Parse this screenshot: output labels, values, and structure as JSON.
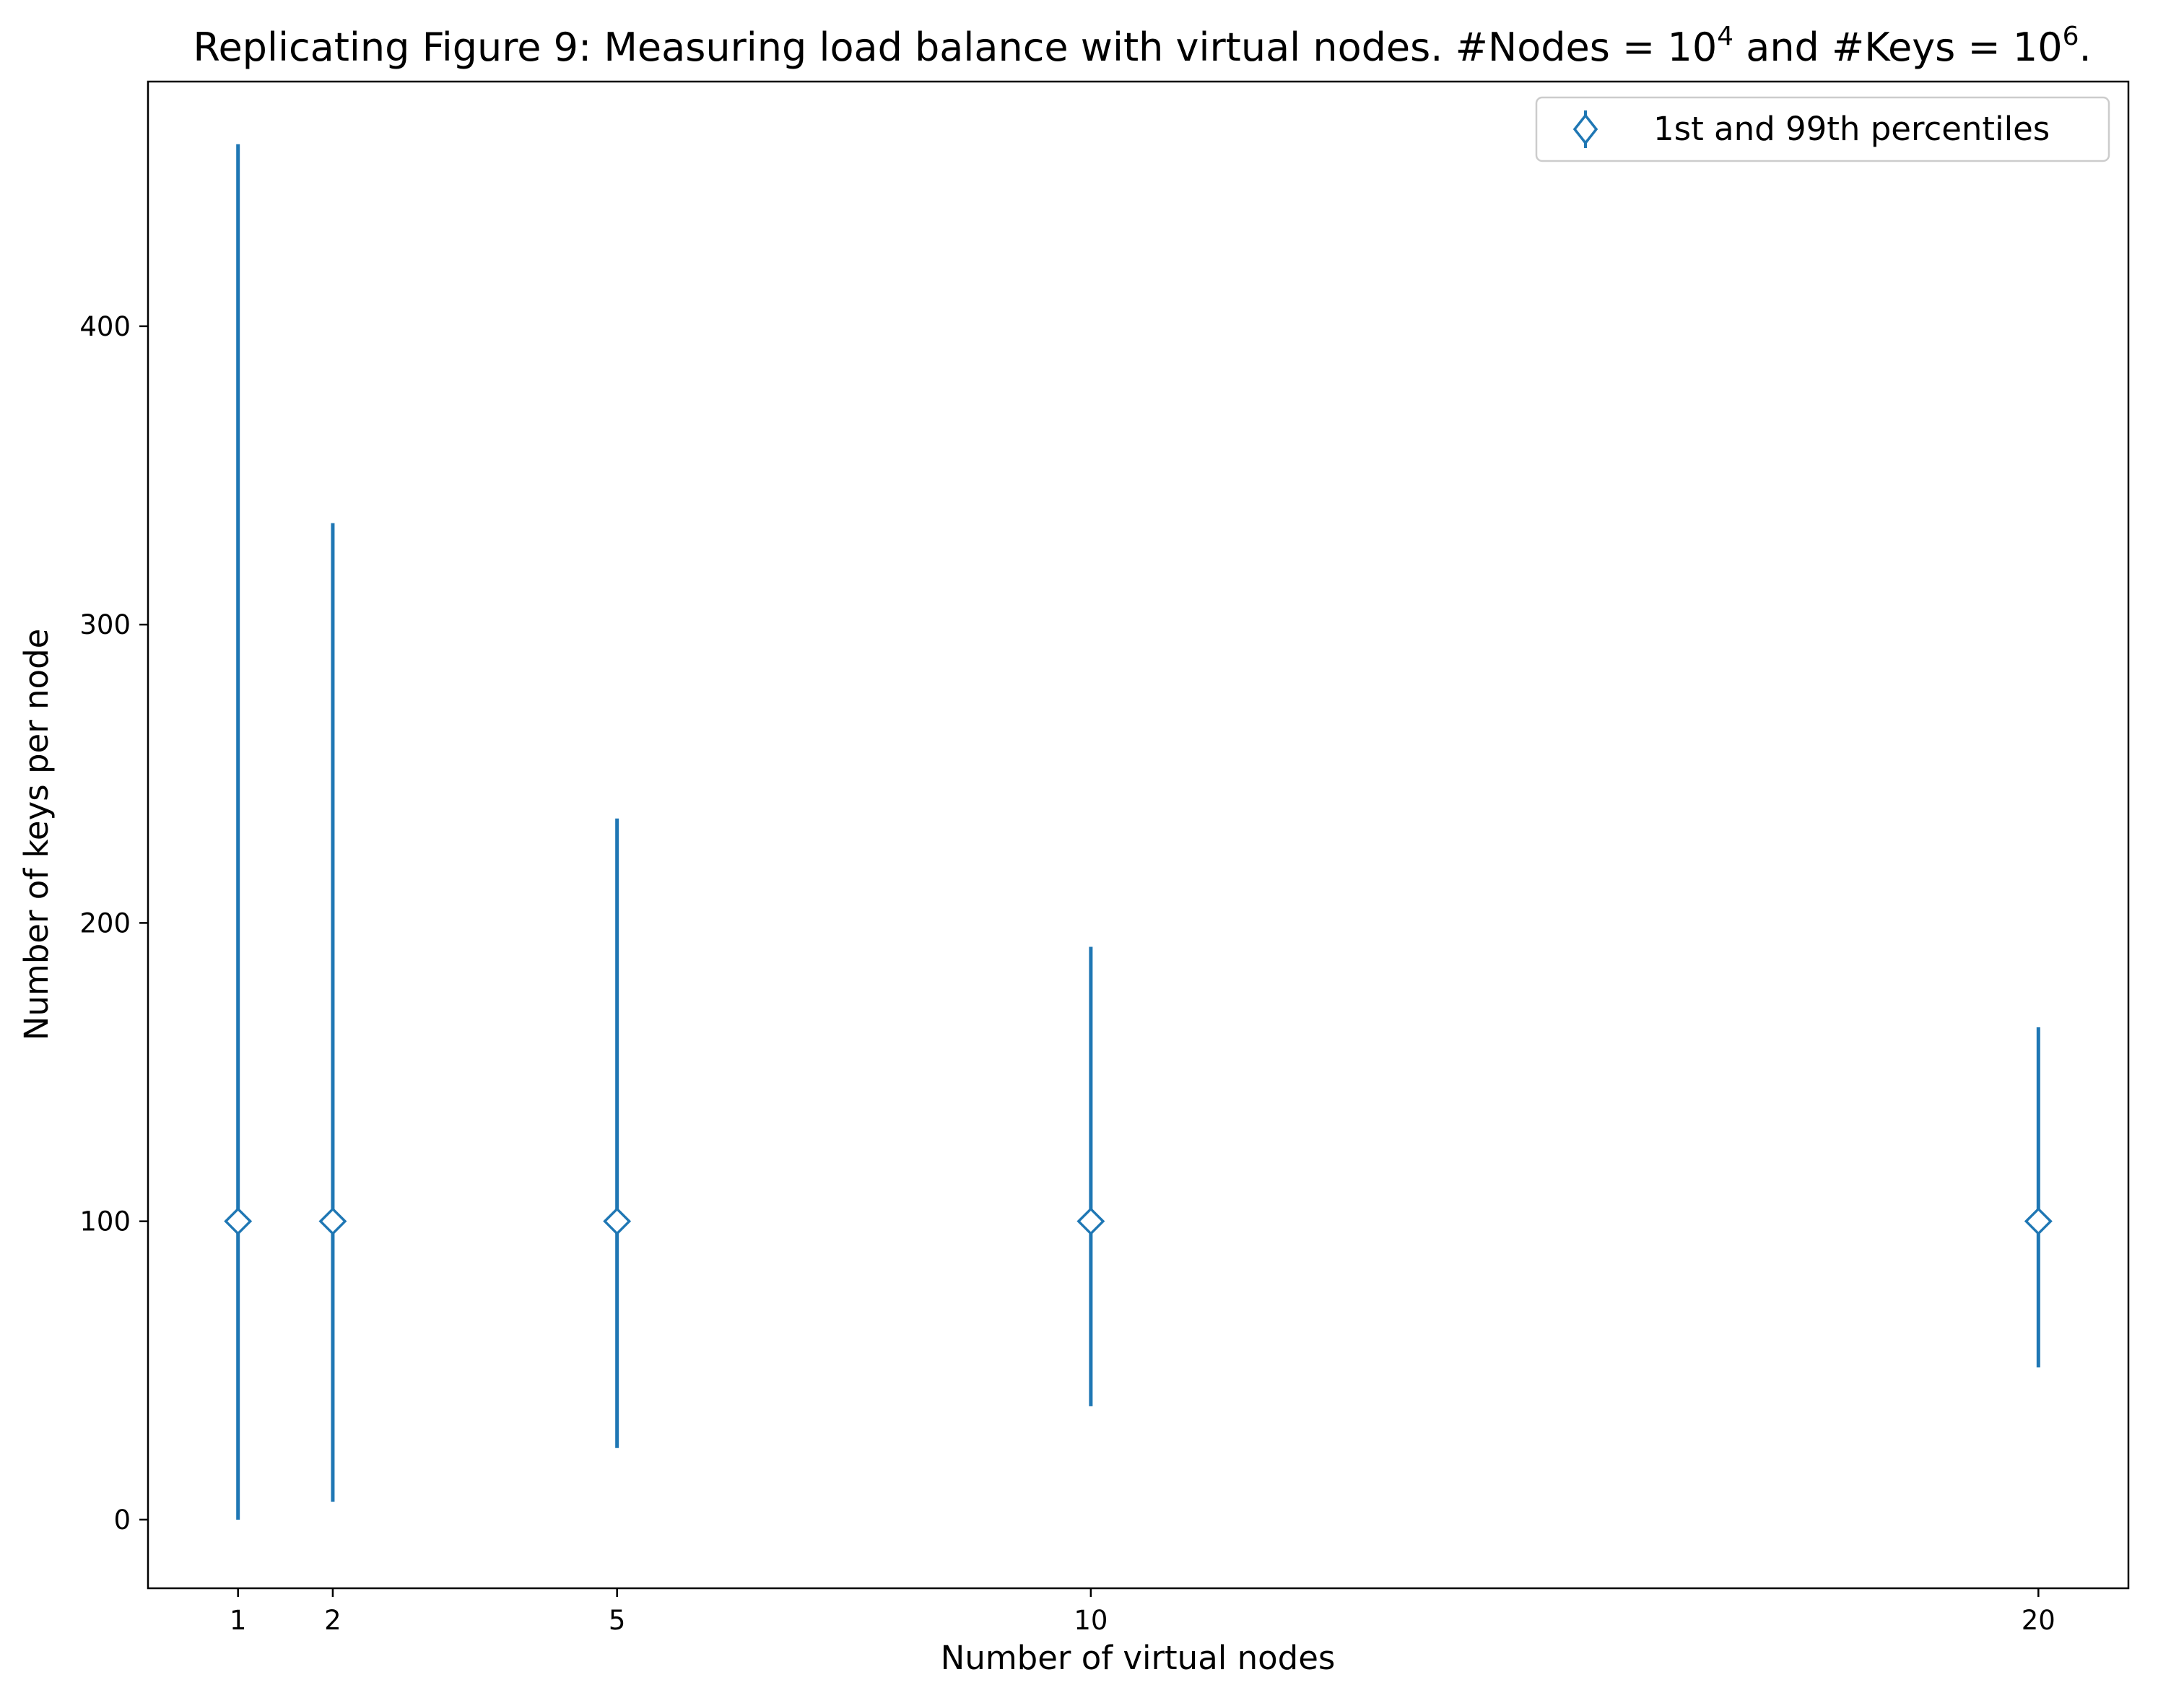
{
  "chart_data": {
    "type": "errorbar",
    "title": {
      "prefix": "Replicating Figure 9: Measuring load balance with virtual nodes. #Nodes = 10",
      "sup1": "4",
      "middle": " and #Keys = 10",
      "sup2": "6",
      "suffix": "."
    },
    "xlabel": "Number of virtual nodes",
    "ylabel": "Number of keys per node",
    "x_ticks": [
      1,
      2,
      5,
      10,
      20
    ],
    "y_ticks": [
      0,
      100,
      200,
      300,
      400
    ],
    "xlim": [
      0.05,
      20.95
    ],
    "ylim": [
      -23,
      482
    ],
    "color": "#1f77b4",
    "marker": "diamond-open",
    "legend": {
      "label": "1st and 99th percentiles",
      "position": "upper-right"
    },
    "series": [
      {
        "name": "1st and 99th percentiles",
        "points": [
          {
            "x": 1,
            "y": 100,
            "low": 0,
            "high": 461
          },
          {
            "x": 2,
            "y": 100,
            "low": 6,
            "high": 334
          },
          {
            "x": 5,
            "y": 100,
            "low": 24,
            "high": 235
          },
          {
            "x": 10,
            "y": 100,
            "low": 38,
            "high": 192
          },
          {
            "x": 20,
            "y": 100,
            "low": 51,
            "high": 165
          }
        ]
      }
    ]
  }
}
